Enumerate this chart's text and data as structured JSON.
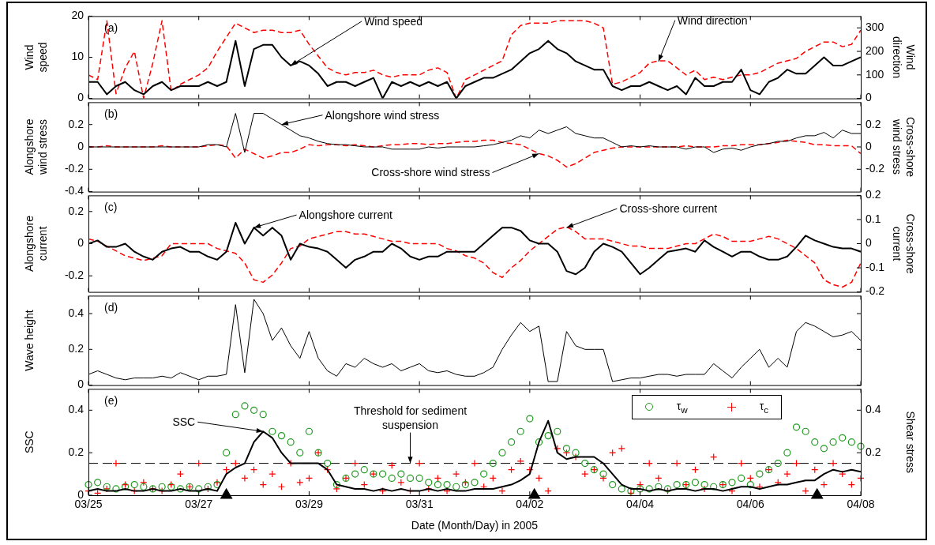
{
  "chart_data": [
    {
      "type": "line",
      "ylabel": "Wind speed",
      "y2label": "Wind direction",
      "xlim": [
        "2005-03-25",
        "2005-04-08"
      ],
      "xticks": [
        {
          "value": "2005-03-25",
          "label": null
        },
        {
          "value": "2005-03-27",
          "label": null
        },
        {
          "value": "2005-03-29",
          "label": null
        },
        {
          "value": "2005-03-31",
          "label": null
        },
        {
          "value": "2005-04-02",
          "label": null
        },
        {
          "value": "2005-04-04",
          "label": null
        },
        {
          "value": "2005-04-06",
          "label": null
        },
        {
          "value": "2005-04-08",
          "label": null
        }
      ],
      "ylim": [
        0,
        20
      ],
      "yticks": [
        0,
        10,
        20
      ],
      "y2lim": [
        0,
        350
      ],
      "y2ticks": [
        0,
        100,
        200,
        300
      ],
      "tick_labels": "y",
      "grid": false,
      "x": [
        "2005-03-25T00:00",
        "2005-03-25T04:00",
        "2005-03-25T08:00",
        "2005-03-25T12:00",
        "2005-03-25T16:00",
        "2005-03-25T20:00",
        "2005-03-26T00:00",
        "2005-03-26T04:00",
        "2005-03-26T08:00",
        "2005-03-26T12:00",
        "2005-03-26T16:00",
        "2005-03-26T20:00",
        "2005-03-27T00:00",
        "2005-03-27T04:00",
        "2005-03-27T08:00",
        "2005-03-27T12:00",
        "2005-03-27T16:00",
        "2005-03-27T20:00",
        "2005-03-28T00:00",
        "2005-03-28T04:00",
        "2005-03-28T08:00",
        "2005-03-28T12:00",
        "2005-03-28T16:00",
        "2005-03-28T20:00",
        "2005-03-29T00:00",
        "2005-03-29T04:00",
        "2005-03-29T08:00",
        "2005-03-29T12:00",
        "2005-03-29T16:00",
        "2005-03-29T20:00",
        "2005-03-30T00:00",
        "2005-03-30T04:00",
        "2005-03-30T08:00",
        "2005-03-30T12:00",
        "2005-03-30T16:00",
        "2005-03-30T20:00",
        "2005-03-31T00:00",
        "2005-03-31T04:00",
        "2005-03-31T08:00",
        "2005-03-31T12:00",
        "2005-03-31T16:00",
        "2005-03-31T20:00",
        "2005-04-01T00:00",
        "2005-04-01T04:00",
        "2005-04-01T08:00",
        "2005-04-01T12:00",
        "2005-04-01T16:00",
        "2005-04-01T20:00",
        "2005-04-02T00:00",
        "2005-04-02T04:00",
        "2005-04-02T08:00",
        "2005-04-02T12:00",
        "2005-04-02T16:00",
        "2005-04-02T20:00",
        "2005-04-03T00:00",
        "2005-04-03T04:00",
        "2005-04-03T08:00",
        "2005-04-03T12:00",
        "2005-04-03T16:00",
        "2005-04-03T20:00",
        "2005-04-04T00:00",
        "2005-04-04T04:00",
        "2005-04-04T08:00",
        "2005-04-04T12:00",
        "2005-04-04T16:00",
        "2005-04-04T20:00",
        "2005-04-05T00:00",
        "2005-04-05T04:00",
        "2005-04-05T08:00",
        "2005-04-05T12:00",
        "2005-04-05T16:00",
        "2005-04-05T20:00",
        "2005-04-06T00:00",
        "2005-04-06T04:00",
        "2005-04-06T08:00",
        "2005-04-06T12:00",
        "2005-04-06T16:00",
        "2005-04-06T20:00",
        "2005-04-07T00:00",
        "2005-04-07T04:00",
        "2005-04-07T08:00",
        "2005-04-07T12:00",
        "2005-04-07T16:00",
        "2005-04-07T20:00",
        "2005-04-08T00:00"
      ],
      "series": [
        {
          "color": "#000000",
          "line_style": "solid",
          "values": [
            4,
            4,
            1,
            3,
            4,
            2,
            1,
            3,
            4,
            2,
            3,
            3,
            3,
            4,
            3,
            4,
            14,
            3,
            12,
            13,
            13,
            10,
            8,
            9,
            8,
            6,
            3,
            4,
            4,
            3,
            4,
            5,
            0,
            4,
            3,
            4,
            3,
            4,
            3,
            4,
            0,
            3,
            4,
            5,
            5,
            6,
            7,
            9,
            11,
            12,
            14,
            12,
            11,
            9,
            8,
            7,
            7,
            3,
            2,
            3,
            3,
            4,
            3,
            2,
            3,
            1,
            5,
            3,
            3,
            4,
            4,
            7,
            2,
            1,
            4,
            5,
            7,
            6,
            6,
            8,
            10,
            8,
            8,
            9,
            10
          ]
        },
        {
          "color": "#ff0000",
          "line_style": "dashed",
          "axis": "y2",
          "values": [
            100,
            80,
            330,
            20,
            130,
            200,
            0,
            150,
            330,
            30,
            60,
            80,
            100,
            130,
            200,
            260,
            320,
            300,
            280,
            290,
            290,
            280,
            280,
            290,
            230,
            180,
            130,
            110,
            100,
            110,
            110,
            120,
            100,
            90,
            100,
            100,
            100,
            120,
            130,
            110,
            0,
            80,
            100,
            120,
            140,
            160,
            270,
            310,
            320,
            320,
            320,
            330,
            330,
            330,
            330,
            320,
            300,
            60,
            70,
            90,
            110,
            150,
            160,
            160,
            130,
            100,
            120,
            80,
            90,
            80,
            90,
            100,
            100,
            110,
            130,
            150,
            160,
            170,
            200,
            220,
            240,
            240,
            220,
            230,
            290
          ]
        }
      ],
      "annotations": [
        "(a)",
        {
          "text": "Wind speed",
          "x": "2005-03-28T16:00",
          "y": 8
        },
        {
          "text": "Wind direction",
          "x": "2005-04-04T08:00",
          "y": 9
        }
      ]
    },
    {
      "type": "line",
      "ylabel": "Alongshore wind stress",
      "y2label": "Cross-shore wind stress",
      "xlim": [
        "2005-03-25",
        "2005-04-08"
      ],
      "xticks": [
        {
          "value": "2005-03-25",
          "label": null
        },
        {
          "value": "2005-03-27",
          "label": null
        },
        {
          "value": "2005-03-29",
          "label": null
        },
        {
          "value": "2005-03-31",
          "label": null
        },
        {
          "value": "2005-04-02",
          "label": null
        },
        {
          "value": "2005-04-04",
          "label": null
        },
        {
          "value": "2005-04-06",
          "label": null
        },
        {
          "value": "2005-04-08",
          "label": null
        }
      ],
      "ylim": [
        -0.4,
        0.4
      ],
      "yticks": [
        -0.4,
        -0.2,
        0,
        0.2
      ],
      "y2lim": [
        -0.4,
        0.4
      ],
      "y2ticks": [
        -0.2,
        0,
        0.2
      ],
      "tick_labels": "y",
      "grid": false,
      "x": [
        "2005-03-25T00:00",
        "2005-03-25T04:00",
        "2005-03-25T08:00",
        "2005-03-25T12:00",
        "2005-03-25T16:00",
        "2005-03-25T20:00",
        "2005-03-26T00:00",
        "2005-03-26T04:00",
        "2005-03-26T08:00",
        "2005-03-26T12:00",
        "2005-03-26T16:00",
        "2005-03-26T20:00",
        "2005-03-27T00:00",
        "2005-03-27T04:00",
        "2005-03-27T08:00",
        "2005-03-27T12:00",
        "2005-03-27T16:00",
        "2005-03-27T20:00",
        "2005-03-28T00:00",
        "2005-03-28T04:00",
        "2005-03-28T08:00",
        "2005-03-28T12:00",
        "2005-03-28T16:00",
        "2005-03-28T20:00",
        "2005-03-29T00:00",
        "2005-03-29T04:00",
        "2005-03-29T08:00",
        "2005-03-29T12:00",
        "2005-03-29T16:00",
        "2005-03-29T20:00",
        "2005-03-30T00:00",
        "2005-03-30T04:00",
        "2005-03-30T08:00",
        "2005-03-30T12:00",
        "2005-03-30T16:00",
        "2005-03-30T20:00",
        "2005-03-31T00:00",
        "2005-03-31T04:00",
        "2005-03-31T08:00",
        "2005-03-31T12:00",
        "2005-03-31T16:00",
        "2005-03-31T20:00",
        "2005-04-01T00:00",
        "2005-04-01T04:00",
        "2005-04-01T08:00",
        "2005-04-01T12:00",
        "2005-04-01T16:00",
        "2005-04-01T20:00",
        "2005-04-02T00:00",
        "2005-04-02T04:00",
        "2005-04-02T08:00",
        "2005-04-02T12:00",
        "2005-04-02T16:00",
        "2005-04-02T20:00",
        "2005-04-03T00:00",
        "2005-04-03T04:00",
        "2005-04-03T08:00",
        "2005-04-03T12:00",
        "2005-04-03T16:00",
        "2005-04-03T20:00",
        "2005-04-04T00:00",
        "2005-04-04T04:00",
        "2005-04-04T08:00",
        "2005-04-04T12:00",
        "2005-04-04T16:00",
        "2005-04-04T20:00",
        "2005-04-05T00:00",
        "2005-04-05T04:00",
        "2005-04-05T08:00",
        "2005-04-05T12:00",
        "2005-04-05T16:00",
        "2005-04-05T20:00",
        "2005-04-06T00:00",
        "2005-04-06T04:00",
        "2005-04-06T08:00",
        "2005-04-06T12:00",
        "2005-04-06T16:00",
        "2005-04-06T20:00",
        "2005-04-07T00:00",
        "2005-04-07T04:00",
        "2005-04-07T08:00",
        "2005-04-07T12:00",
        "2005-04-07T16:00",
        "2005-04-07T20:00",
        "2005-04-08T00:00"
      ],
      "series": [
        {
          "color": "#000000",
          "line_style": "solid",
          "values": [
            0,
            0,
            0,
            0,
            0,
            0,
            0,
            0,
            0,
            0,
            0,
            0,
            0,
            0.02,
            0.02,
            0,
            0.3,
            -0.05,
            0.3,
            0.3,
            0.25,
            0.2,
            0.15,
            0.1,
            0.08,
            0.05,
            0.03,
            0.02,
            0.02,
            0.01,
            0,
            0,
            0,
            -0.02,
            -0.02,
            -0.02,
            -0.02,
            0,
            -0.01,
            0,
            0,
            0,
            0,
            0.01,
            0.02,
            0.04,
            0.06,
            0.1,
            0.08,
            0.15,
            0.12,
            0.15,
            0.18,
            0.12,
            0.1,
            0.08,
            0.08,
            0.04,
            0,
            0.01,
            0,
            0.01,
            0,
            0,
            0,
            -0.02,
            0,
            0,
            -0.05,
            -0.02,
            -0.01,
            -0.03,
            0,
            0.02,
            0.03,
            0.05,
            0.05,
            0.08,
            0.1,
            0.1,
            0.13,
            0.08,
            0.15,
            0.12,
            0.12
          ]
        },
        {
          "color": "#ff0000",
          "line_style": "dashed",
          "axis": "y2",
          "values": [
            0,
            0,
            0.01,
            0,
            0,
            0,
            0,
            0,
            0.01,
            0,
            0,
            0,
            0,
            0.01,
            0.02,
            0.01,
            -0.1,
            -0.02,
            -0.06,
            -0.1,
            -0.08,
            -0.05,
            -0.05,
            -0.02,
            0.02,
            0.01,
            0.02,
            0.02,
            0.01,
            0.02,
            0.01,
            0,
            0.01,
            0.02,
            0.02,
            0.03,
            0.03,
            0.02,
            0.03,
            0.03,
            0.04,
            0.05,
            0.05,
            0.06,
            0.06,
            0.04,
            0.03,
            0.02,
            -0.02,
            -0.06,
            -0.08,
            -0.12,
            -0.18,
            -0.15,
            -0.1,
            -0.05,
            -0.03,
            -0.01,
            0,
            0,
            0,
            0,
            0,
            0,
            0,
            0.01,
            0,
            0,
            0,
            0.01,
            0.01,
            0.02,
            0.02,
            0.02,
            0.03,
            0.04,
            0.06,
            0.05,
            0.04,
            0.02,
            0.02,
            0.01,
            0.01,
            0.01,
            -0.06
          ]
        }
      ],
      "annotations": [
        "(b)",
        {
          "text": "Alongshore wind stress",
          "x": "2005-03-28T12:00",
          "y": 0.2
        },
        {
          "text": "Cross-shore wind stress",
          "x": "2005-04-02T04:00",
          "y": -0.06
        }
      ]
    },
    {
      "type": "line",
      "ylabel": "Alongshore current",
      "y2label": "Cross-shore current",
      "xlim": [
        "2005-03-25",
        "2005-04-08"
      ],
      "xticks": [
        {
          "value": "2005-03-25",
          "label": null
        },
        {
          "value": "2005-03-27",
          "label": null
        },
        {
          "value": "2005-03-29",
          "label": null
        },
        {
          "value": "2005-03-31",
          "label": null
        },
        {
          "value": "2005-04-02",
          "label": null
        },
        {
          "value": "2005-04-04",
          "label": null
        },
        {
          "value": "2005-04-06",
          "label": null
        },
        {
          "value": "2005-04-08",
          "label": null
        }
      ],
      "ylim": [
        -0.3,
        0.3
      ],
      "yticks": [
        -0.2,
        0,
        0.2
      ],
      "y2lim": [
        -0.2,
        0.2
      ],
      "y2ticks": [
        -0.2,
        -0.1,
        0,
        0.1,
        0.2
      ],
      "tick_labels": "y",
      "grid": false,
      "x": [
        "2005-03-25T00:00",
        "2005-03-25T04:00",
        "2005-03-25T08:00",
        "2005-03-25T12:00",
        "2005-03-25T16:00",
        "2005-03-25T20:00",
        "2005-03-26T00:00",
        "2005-03-26T04:00",
        "2005-03-26T08:00",
        "2005-03-26T12:00",
        "2005-03-26T16:00",
        "2005-03-26T20:00",
        "2005-03-27T00:00",
        "2005-03-27T04:00",
        "2005-03-27T08:00",
        "2005-03-27T12:00",
        "2005-03-27T16:00",
        "2005-03-27T20:00",
        "2005-03-28T00:00",
        "2005-03-28T04:00",
        "2005-03-28T08:00",
        "2005-03-28T12:00",
        "2005-03-28T16:00",
        "2005-03-28T20:00",
        "2005-03-29T00:00",
        "2005-03-29T04:00",
        "2005-03-29T08:00",
        "2005-03-29T12:00",
        "2005-03-29T16:00",
        "2005-03-29T20:00",
        "2005-03-30T00:00",
        "2005-03-30T04:00",
        "2005-03-30T08:00",
        "2005-03-30T12:00",
        "2005-03-30T16:00",
        "2005-03-30T20:00",
        "2005-03-31T00:00",
        "2005-03-31T04:00",
        "2005-03-31T08:00",
        "2005-03-31T12:00",
        "2005-03-31T16:00",
        "2005-03-31T20:00",
        "2005-04-01T00:00",
        "2005-04-01T04:00",
        "2005-04-01T08:00",
        "2005-04-01T12:00",
        "2005-04-01T16:00",
        "2005-04-01T20:00",
        "2005-04-02T00:00",
        "2005-04-02T04:00",
        "2005-04-02T08:00",
        "2005-04-02T12:00",
        "2005-04-02T16:00",
        "2005-04-02T20:00",
        "2005-04-03T00:00",
        "2005-04-03T04:00",
        "2005-04-03T08:00",
        "2005-04-03T12:00",
        "2005-04-03T16:00",
        "2005-04-03T20:00",
        "2005-04-04T00:00",
        "2005-04-04T04:00",
        "2005-04-04T08:00",
        "2005-04-04T12:00",
        "2005-04-04T16:00",
        "2005-04-04T20:00",
        "2005-04-05T00:00",
        "2005-04-05T04:00",
        "2005-04-05T08:00",
        "2005-04-05T12:00",
        "2005-04-05T16:00",
        "2005-04-05T20:00",
        "2005-04-06T00:00",
        "2005-04-06T04:00",
        "2005-04-06T08:00",
        "2005-04-06T12:00",
        "2005-04-06T16:00",
        "2005-04-06T20:00",
        "2005-04-07T00:00",
        "2005-04-07T04:00",
        "2005-04-07T08:00",
        "2005-04-07T12:00",
        "2005-04-07T16:00",
        "2005-04-07T20:00",
        "2005-04-08T00:00"
      ],
      "series": [
        {
          "color": "#000000",
          "line_style": "solid",
          "values": [
            0,
            0.02,
            -0.02,
            -0.02,
            0,
            -0.05,
            -0.08,
            -0.1,
            -0.05,
            -0.03,
            -0.02,
            -0.05,
            -0.05,
            -0.08,
            -0.1,
            -0.05,
            0.13,
            0,
            0.1,
            0.05,
            0.1,
            0.05,
            -0.1,
            0,
            -0.02,
            -0.03,
            -0.05,
            -0.1,
            -0.15,
            -0.1,
            -0.08,
            -0.05,
            -0.05,
            0,
            -0.03,
            -0.08,
            -0.1,
            -0.08,
            -0.08,
            -0.05,
            -0.05,
            -0.05,
            -0.05,
            0,
            0.05,
            0.1,
            0.1,
            0.08,
            0.02,
            0,
            0,
            -0.05,
            -0.17,
            -0.19,
            -0.15,
            -0.05,
            0,
            -0.02,
            -0.05,
            -0.12,
            -0.19,
            -0.15,
            -0.1,
            -0.05,
            -0.04,
            -0.03,
            -0.05,
            0.02,
            -0.02,
            -0.05,
            -0.08,
            -0.05,
            -0.05,
            -0.08,
            -0.1,
            -0.1,
            -0.08,
            -0.02,
            0.05,
            0.02,
            0,
            -0.02,
            -0.03,
            -0.03,
            -0.05
          ]
        },
        {
          "color": "#ff0000",
          "line_style": "dashed",
          "axis": "y2",
          "values": [
            0.02,
            0.01,
            -0.01,
            -0.03,
            -0.05,
            -0.06,
            -0.07,
            -0.06,
            -0.05,
            0,
            0,
            0,
            0,
            0,
            -0.02,
            -0.03,
            -0.04,
            -0.08,
            -0.15,
            -0.16,
            -0.13,
            -0.08,
            -0.02,
            -0.01,
            0.02,
            0.03,
            0.04,
            0.05,
            0.05,
            0.04,
            0.04,
            0.03,
            0.02,
            0.01,
            0.01,
            0,
            0,
            0,
            0,
            -0.02,
            -0.03,
            -0.05,
            -0.06,
            -0.08,
            -0.12,
            -0.14,
            -0.1,
            -0.07,
            -0.03,
            0,
            0.03,
            0.06,
            0.07,
            0.05,
            0.02,
            0.02,
            0.02,
            0.01,
            0,
            -0.01,
            -0.01,
            -0.02,
            -0.02,
            -0.02,
            -0.01,
            0,
            0,
            0.02,
            0.04,
            0.03,
            0.01,
            0.01,
            0.01,
            0.02,
            0.03,
            0.02,
            0,
            -0.02,
            -0.05,
            -0.08,
            -0.15,
            -0.17,
            -0.18,
            -0.16,
            -0.08
          ]
        }
      ],
      "annotations": [
        "(c)",
        {
          "text": "Alongshore current",
          "x": "2005-03-28T00:00",
          "y": 0.1
        },
        {
          "text": "Cross-shore current",
          "x": "2005-04-02T16:00",
          "y": 0.1
        }
      ]
    },
    {
      "type": "line",
      "ylabel": "Wave height",
      "xlim": [
        "2005-03-25",
        "2005-04-08"
      ],
      "xticks": [
        {
          "value": "2005-03-25",
          "label": null
        },
        {
          "value": "2005-03-27",
          "label": null
        },
        {
          "value": "2005-03-29",
          "label": null
        },
        {
          "value": "2005-03-31",
          "label": null
        },
        {
          "value": "2005-04-02",
          "label": null
        },
        {
          "value": "2005-04-04",
          "label": null
        },
        {
          "value": "2005-04-06",
          "label": null
        },
        {
          "value": "2005-04-08",
          "label": null
        }
      ],
      "ylim": [
        0,
        0.5
      ],
      "yticks": [
        0,
        0.2,
        0.4
      ],
      "tick_labels": "y",
      "grid": false,
      "x": [
        "2005-03-25T00:00",
        "2005-03-25T04:00",
        "2005-03-25T08:00",
        "2005-03-25T12:00",
        "2005-03-25T16:00",
        "2005-03-25T20:00",
        "2005-03-26T00:00",
        "2005-03-26T04:00",
        "2005-03-26T08:00",
        "2005-03-26T12:00",
        "2005-03-26T16:00",
        "2005-03-26T20:00",
        "2005-03-27T00:00",
        "2005-03-27T04:00",
        "2005-03-27T08:00",
        "2005-03-27T12:00",
        "2005-03-27T16:00",
        "2005-03-27T20:00",
        "2005-03-28T00:00",
        "2005-03-28T04:00",
        "2005-03-28T08:00",
        "2005-03-28T12:00",
        "2005-03-28T16:00",
        "2005-03-28T20:00",
        "2005-03-29T00:00",
        "2005-03-29T04:00",
        "2005-03-29T08:00",
        "2005-03-29T12:00",
        "2005-03-29T16:00",
        "2005-03-29T20:00",
        "2005-03-30T00:00",
        "2005-03-30T04:00",
        "2005-03-30T08:00",
        "2005-03-30T12:00",
        "2005-03-30T16:00",
        "2005-03-30T20:00",
        "2005-03-31T00:00",
        "2005-03-31T04:00",
        "2005-03-31T08:00",
        "2005-03-31T12:00",
        "2005-03-31T16:00",
        "2005-03-31T20:00",
        "2005-04-01T00:00",
        "2005-04-01T04:00",
        "2005-04-01T08:00",
        "2005-04-01T12:00",
        "2005-04-01T16:00",
        "2005-04-01T20:00",
        "2005-04-02T00:00",
        "2005-04-02T04:00",
        "2005-04-02T08:00",
        "2005-04-02T12:00",
        "2005-04-02T16:00",
        "2005-04-02T20:00",
        "2005-04-03T00:00",
        "2005-04-03T04:00",
        "2005-04-03T08:00",
        "2005-04-03T12:00",
        "2005-04-03T16:00",
        "2005-04-03T20:00",
        "2005-04-04T00:00",
        "2005-04-04T04:00",
        "2005-04-04T08:00",
        "2005-04-04T12:00",
        "2005-04-04T16:00",
        "2005-04-04T20:00",
        "2005-04-05T00:00",
        "2005-04-05T04:00",
        "2005-04-05T08:00",
        "2005-04-05T12:00",
        "2005-04-05T16:00",
        "2005-04-05T20:00",
        "2005-04-06T00:00",
        "2005-04-06T04:00",
        "2005-04-06T08:00",
        "2005-04-06T12:00",
        "2005-04-06T16:00",
        "2005-04-06T20:00",
        "2005-04-07T00:00",
        "2005-04-07T04:00",
        "2005-04-07T08:00",
        "2005-04-07T12:00",
        "2005-04-07T16:00",
        "2005-04-07T20:00",
        "2005-04-08T00:00"
      ],
      "series": [
        {
          "color": "#000000",
          "line_style": "solid",
          "values": [
            0.06,
            0.08,
            0.06,
            0.04,
            0.03,
            0.04,
            0.04,
            0.04,
            0.05,
            0.04,
            0.07,
            0.05,
            0.03,
            0.05,
            0.05,
            0.06,
            0.45,
            0.07,
            0.48,
            0.4,
            0.25,
            0.32,
            0.22,
            0.15,
            0.3,
            0.15,
            0.08,
            0.05,
            0.12,
            0.1,
            0.15,
            0.12,
            0.1,
            0.12,
            0.08,
            0.1,
            0.12,
            0.08,
            0.07,
            0.08,
            0.06,
            0.05,
            0.05,
            0.07,
            0.1,
            0.2,
            0.28,
            0.35,
            0.3,
            0.33,
            0.02,
            0.02,
            0.3,
            0.22,
            0.2,
            0.2,
            0.2,
            0.02,
            0.03,
            0.04,
            0.04,
            0.05,
            0.06,
            0.06,
            0.05,
            0.06,
            0.06,
            0.06,
            0.12,
            0.08,
            0.04,
            0.1,
            0.15,
            0.2,
            0.1,
            0.15,
            0.1,
            0.3,
            0.35,
            0.33,
            0.3,
            0.27,
            0.28,
            0.3,
            0.25
          ]
        }
      ],
      "annotations": [
        "(d)"
      ]
    },
    {
      "type": "line",
      "ylabel": "SSC",
      "y2label": "Shear stress",
      "xlabel": "Date (Month/Day) in 2005",
      "xlim": [
        "2005-03-25",
        "2005-04-08"
      ],
      "xticks": [
        {
          "value": "2005-03-25",
          "label": "03/25"
        },
        {
          "value": "2005-03-27",
          "label": "03/27"
        },
        {
          "value": "2005-03-29",
          "label": "03/29"
        },
        {
          "value": "2005-03-31",
          "label": "03/31"
        },
        {
          "value": "2005-04-02",
          "label": "04/02"
        },
        {
          "value": "2005-04-04",
          "label": "04/04"
        },
        {
          "value": "2005-04-06",
          "label": "04/06"
        },
        {
          "value": "2005-04-08",
          "label": "04/08"
        }
      ],
      "ylim": [
        0,
        0.5
      ],
      "yticks": [
        0,
        0.2,
        0.4
      ],
      "y2lim": [
        0,
        0.5
      ],
      "y2ticks": [
        0.2,
        0.4
      ],
      "grid": false,
      "legend": "top right",
      "x": [
        "2005-03-25T00:00",
        "2005-03-25T04:00",
        "2005-03-25T08:00",
        "2005-03-25T12:00",
        "2005-03-25T16:00",
        "2005-03-25T20:00",
        "2005-03-26T00:00",
        "2005-03-26T04:00",
        "2005-03-26T08:00",
        "2005-03-26T12:00",
        "2005-03-26T16:00",
        "2005-03-26T20:00",
        "2005-03-27T00:00",
        "2005-03-27T04:00",
        "2005-03-27T08:00",
        "2005-03-27T12:00",
        "2005-03-27T16:00",
        "2005-03-27T20:00",
        "2005-03-28T00:00",
        "2005-03-28T04:00",
        "2005-03-28T08:00",
        "2005-03-28T12:00",
        "2005-03-28T16:00",
        "2005-03-28T20:00",
        "2005-03-29T00:00",
        "2005-03-29T04:00",
        "2005-03-29T08:00",
        "2005-03-29T12:00",
        "2005-03-29T16:00",
        "2005-03-29T20:00",
        "2005-03-30T00:00",
        "2005-03-30T04:00",
        "2005-03-30T08:00",
        "2005-03-30T12:00",
        "2005-03-30T16:00",
        "2005-03-30T20:00",
        "2005-03-31T00:00",
        "2005-03-31T04:00",
        "2005-03-31T08:00",
        "2005-03-31T12:00",
        "2005-03-31T16:00",
        "2005-03-31T20:00",
        "2005-04-01T00:00",
        "2005-04-01T04:00",
        "2005-04-01T08:00",
        "2005-04-01T12:00",
        "2005-04-01T16:00",
        "2005-04-01T20:00",
        "2005-04-02T00:00",
        "2005-04-02T04:00",
        "2005-04-02T08:00",
        "2005-04-02T12:00",
        "2005-04-02T16:00",
        "2005-04-02T20:00",
        "2005-04-03T00:00",
        "2005-04-03T04:00",
        "2005-04-03T08:00",
        "2005-04-03T12:00",
        "2005-04-03T16:00",
        "2005-04-03T20:00",
        "2005-04-04T00:00",
        "2005-04-04T04:00",
        "2005-04-04T08:00",
        "2005-04-04T12:00",
        "2005-04-04T16:00",
        "2005-04-04T20:00",
        "2005-04-05T00:00",
        "2005-04-05T04:00",
        "2005-04-05T08:00",
        "2005-04-05T12:00",
        "2005-04-05T16:00",
        "2005-04-05T20:00",
        "2005-04-06T00:00",
        "2005-04-06T04:00",
        "2005-04-06T08:00",
        "2005-04-06T12:00",
        "2005-04-06T16:00",
        "2005-04-06T20:00",
        "2005-04-07T00:00",
        "2005-04-07T04:00",
        "2005-04-07T08:00",
        "2005-04-07T12:00",
        "2005-04-07T16:00",
        "2005-04-07T20:00",
        "2005-04-08T00:00"
      ],
      "series": [
        {
          "color": "#000000",
          "line_style": "solid",
          "values": [
            0.02,
            0.03,
            0.02,
            0.02,
            0.03,
            0.02,
            0.02,
            0.03,
            0.02,
            0.02,
            0.03,
            0.02,
            0.02,
            0.03,
            0.02,
            0.1,
            0.13,
            0.15,
            0.25,
            0.3,
            0.27,
            0.2,
            0.15,
            0.15,
            0.15,
            0.15,
            0.12,
            0.05,
            0.04,
            0.03,
            0.03,
            0.02,
            0.03,
            0.02,
            0.03,
            0.02,
            0.02,
            0.03,
            0.02,
            0.03,
            0.02,
            0.02,
            0.03,
            0.03,
            0.03,
            0.04,
            0.05,
            0.07,
            0.1,
            0.25,
            0.35,
            0.2,
            0.17,
            0.18,
            0.18,
            0.18,
            0.15,
            0.1,
            0.05,
            0.03,
            0.03,
            0.02,
            0.03,
            0.02,
            0.03,
            0.03,
            0.02,
            0.03,
            0.03,
            0.02,
            0.03,
            0.04,
            0.04,
            0.03,
            0.04,
            0.05,
            0.05,
            0.06,
            0.07,
            0.07,
            0.1,
            0.12,
            0.11,
            0.12,
            0.11
          ]
        },
        {
          "name": "τ$_{w}$",
          "type": "scatter",
          "marker": "circle",
          "color": "#1f9a1f",
          "axis": "y2",
          "values": [
            0.05,
            0.06,
            0.04,
            0.03,
            0.04,
            0.05,
            0.04,
            0.03,
            0.04,
            0.04,
            0.03,
            0.04,
            0.03,
            0.04,
            0.05,
            0.2,
            0.38,
            0.42,
            0.4,
            0.38,
            0.3,
            0.28,
            0.25,
            0.2,
            0.3,
            0.2,
            0.15,
            0.05,
            0.08,
            0.1,
            0.12,
            0.1,
            0.1,
            0.08,
            0.1,
            0.08,
            0.08,
            0.06,
            0.05,
            0.05,
            0.04,
            0.05,
            0.06,
            0.1,
            0.15,
            0.2,
            0.25,
            0.3,
            0.36,
            0.25,
            0.28,
            0.3,
            0.22,
            0.2,
            0.15,
            0.12,
            0.1,
            0.05,
            0.03,
            0.02,
            0.03,
            0.03,
            0.04,
            0.03,
            0.05,
            0.05,
            0.06,
            0.05,
            0.04,
            0.05,
            0.06,
            0.08,
            0.05,
            0.1,
            0.12,
            0.15,
            0.2,
            0.32,
            0.3,
            0.25,
            0.22,
            0.25,
            0.27,
            0.25,
            0.23
          ]
        },
        {
          "name": "τ$_{c}$",
          "type": "scatter",
          "marker": "cross",
          "color": "#ff0000",
          "axis": "y2",
          "values": [
            0.02,
            0.01,
            0.03,
            0.15,
            0.05,
            0.02,
            0.06,
            0.03,
            0.02,
            0.05,
            0.1,
            0.04,
            0.15,
            0.03,
            0.06,
            0.12,
            0.15,
            0.08,
            0.12,
            0.05,
            0.1,
            0.04,
            0.15,
            0.06,
            0.08,
            0.2,
            0.12,
            0.03,
            0.08,
            0.15,
            0.05,
            0.1,
            0.02,
            0.14,
            0.06,
            0.02,
            0.15,
            0.03,
            0.08,
            0.02,
            0.1,
            0.06,
            0.15,
            0.04,
            0.08,
            0.02,
            0.12,
            0.16,
            0.12,
            0.08,
            0.02,
            0.22,
            0.2,
            0.18,
            0.1,
            0.12,
            0.08,
            0.2,
            0.22,
            0.01,
            0.05,
            0.15,
            0.08,
            0.02,
            0.15,
            0.05,
            0.12,
            0.03,
            0.18,
            0.05,
            0.02,
            0.15,
            0.08,
            0.04,
            0.12,
            0.06,
            0.1,
            0.15,
            0.02,
            0.12,
            0.05,
            0.15,
            0.1,
            0.05,
            0.08
          ]
        },
        {
          "type": "scatter",
          "marker": "triangle",
          "color": "#000000",
          "x": [
            "2005-03-27T12:00",
            "2005-04-02T02:00",
            "2005-04-07T05:00"
          ],
          "values": [
            0,
            0,
            0
          ]
        }
      ],
      "ref_lines": [
        {
          "axis": "y",
          "value": 0.15,
          "color": "#000000",
          "line_style": "dashed"
        }
      ],
      "annotations": [
        "(e)",
        {
          "text": "SSC",
          "x": "2005-03-28T04:00",
          "y": 0.3
        },
        {
          "text": "Threshold for sediment suspension",
          "x": "2005-03-30T20:00",
          "y": 0.15
        }
      ]
    }
  ]
}
